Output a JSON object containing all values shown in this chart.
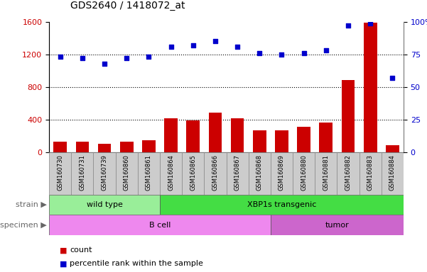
{
  "title": "GDS2640 / 1418072_at",
  "samples": [
    "GSM160730",
    "GSM160731",
    "GSM160739",
    "GSM160860",
    "GSM160861",
    "GSM160864",
    "GSM160865",
    "GSM160866",
    "GSM160867",
    "GSM160868",
    "GSM160869",
    "GSM160880",
    "GSM160881",
    "GSM160882",
    "GSM160883",
    "GSM160884"
  ],
  "counts": [
    130,
    130,
    105,
    130,
    150,
    420,
    390,
    490,
    415,
    270,
    270,
    310,
    365,
    890,
    1590,
    90
  ],
  "percentiles": [
    73,
    72,
    68,
    72,
    73,
    81,
    82,
    85,
    81,
    76,
    75,
    76,
    78,
    97,
    99,
    57
  ],
  "ylim_left": [
    0,
    1600
  ],
  "ylim_right": [
    0,
    100
  ],
  "yticks_left": [
    0,
    400,
    800,
    1200,
    1600
  ],
  "yticks_right": [
    0,
    25,
    50,
    75,
    100
  ],
  "bar_color": "#cc0000",
  "scatter_color": "#0000cc",
  "grid_color": "#000000",
  "strain_groups": [
    {
      "label": "wild type",
      "start": 0,
      "end": 5,
      "color": "#99ee99"
    },
    {
      "label": "XBP1s transgenic",
      "start": 5,
      "end": 16,
      "color": "#44dd44"
    }
  ],
  "specimen_groups": [
    {
      "label": "B cell",
      "start": 0,
      "end": 10,
      "color": "#ee88ee"
    },
    {
      "label": "tumor",
      "start": 10,
      "end": 16,
      "color": "#cc66cc"
    }
  ],
  "legend_items": [
    {
      "label": "count",
      "color": "#cc0000"
    },
    {
      "label": "percentile rank within the sample",
      "color": "#0000cc"
    }
  ],
  "tick_label_color_left": "#cc0000",
  "tick_label_color_right": "#0000cc",
  "background_color": "#ffffff",
  "xtick_bg_color": "#cccccc",
  "plot_bg_color": "#ffffff",
  "strain_label": "strain",
  "specimen_label": "specimen"
}
